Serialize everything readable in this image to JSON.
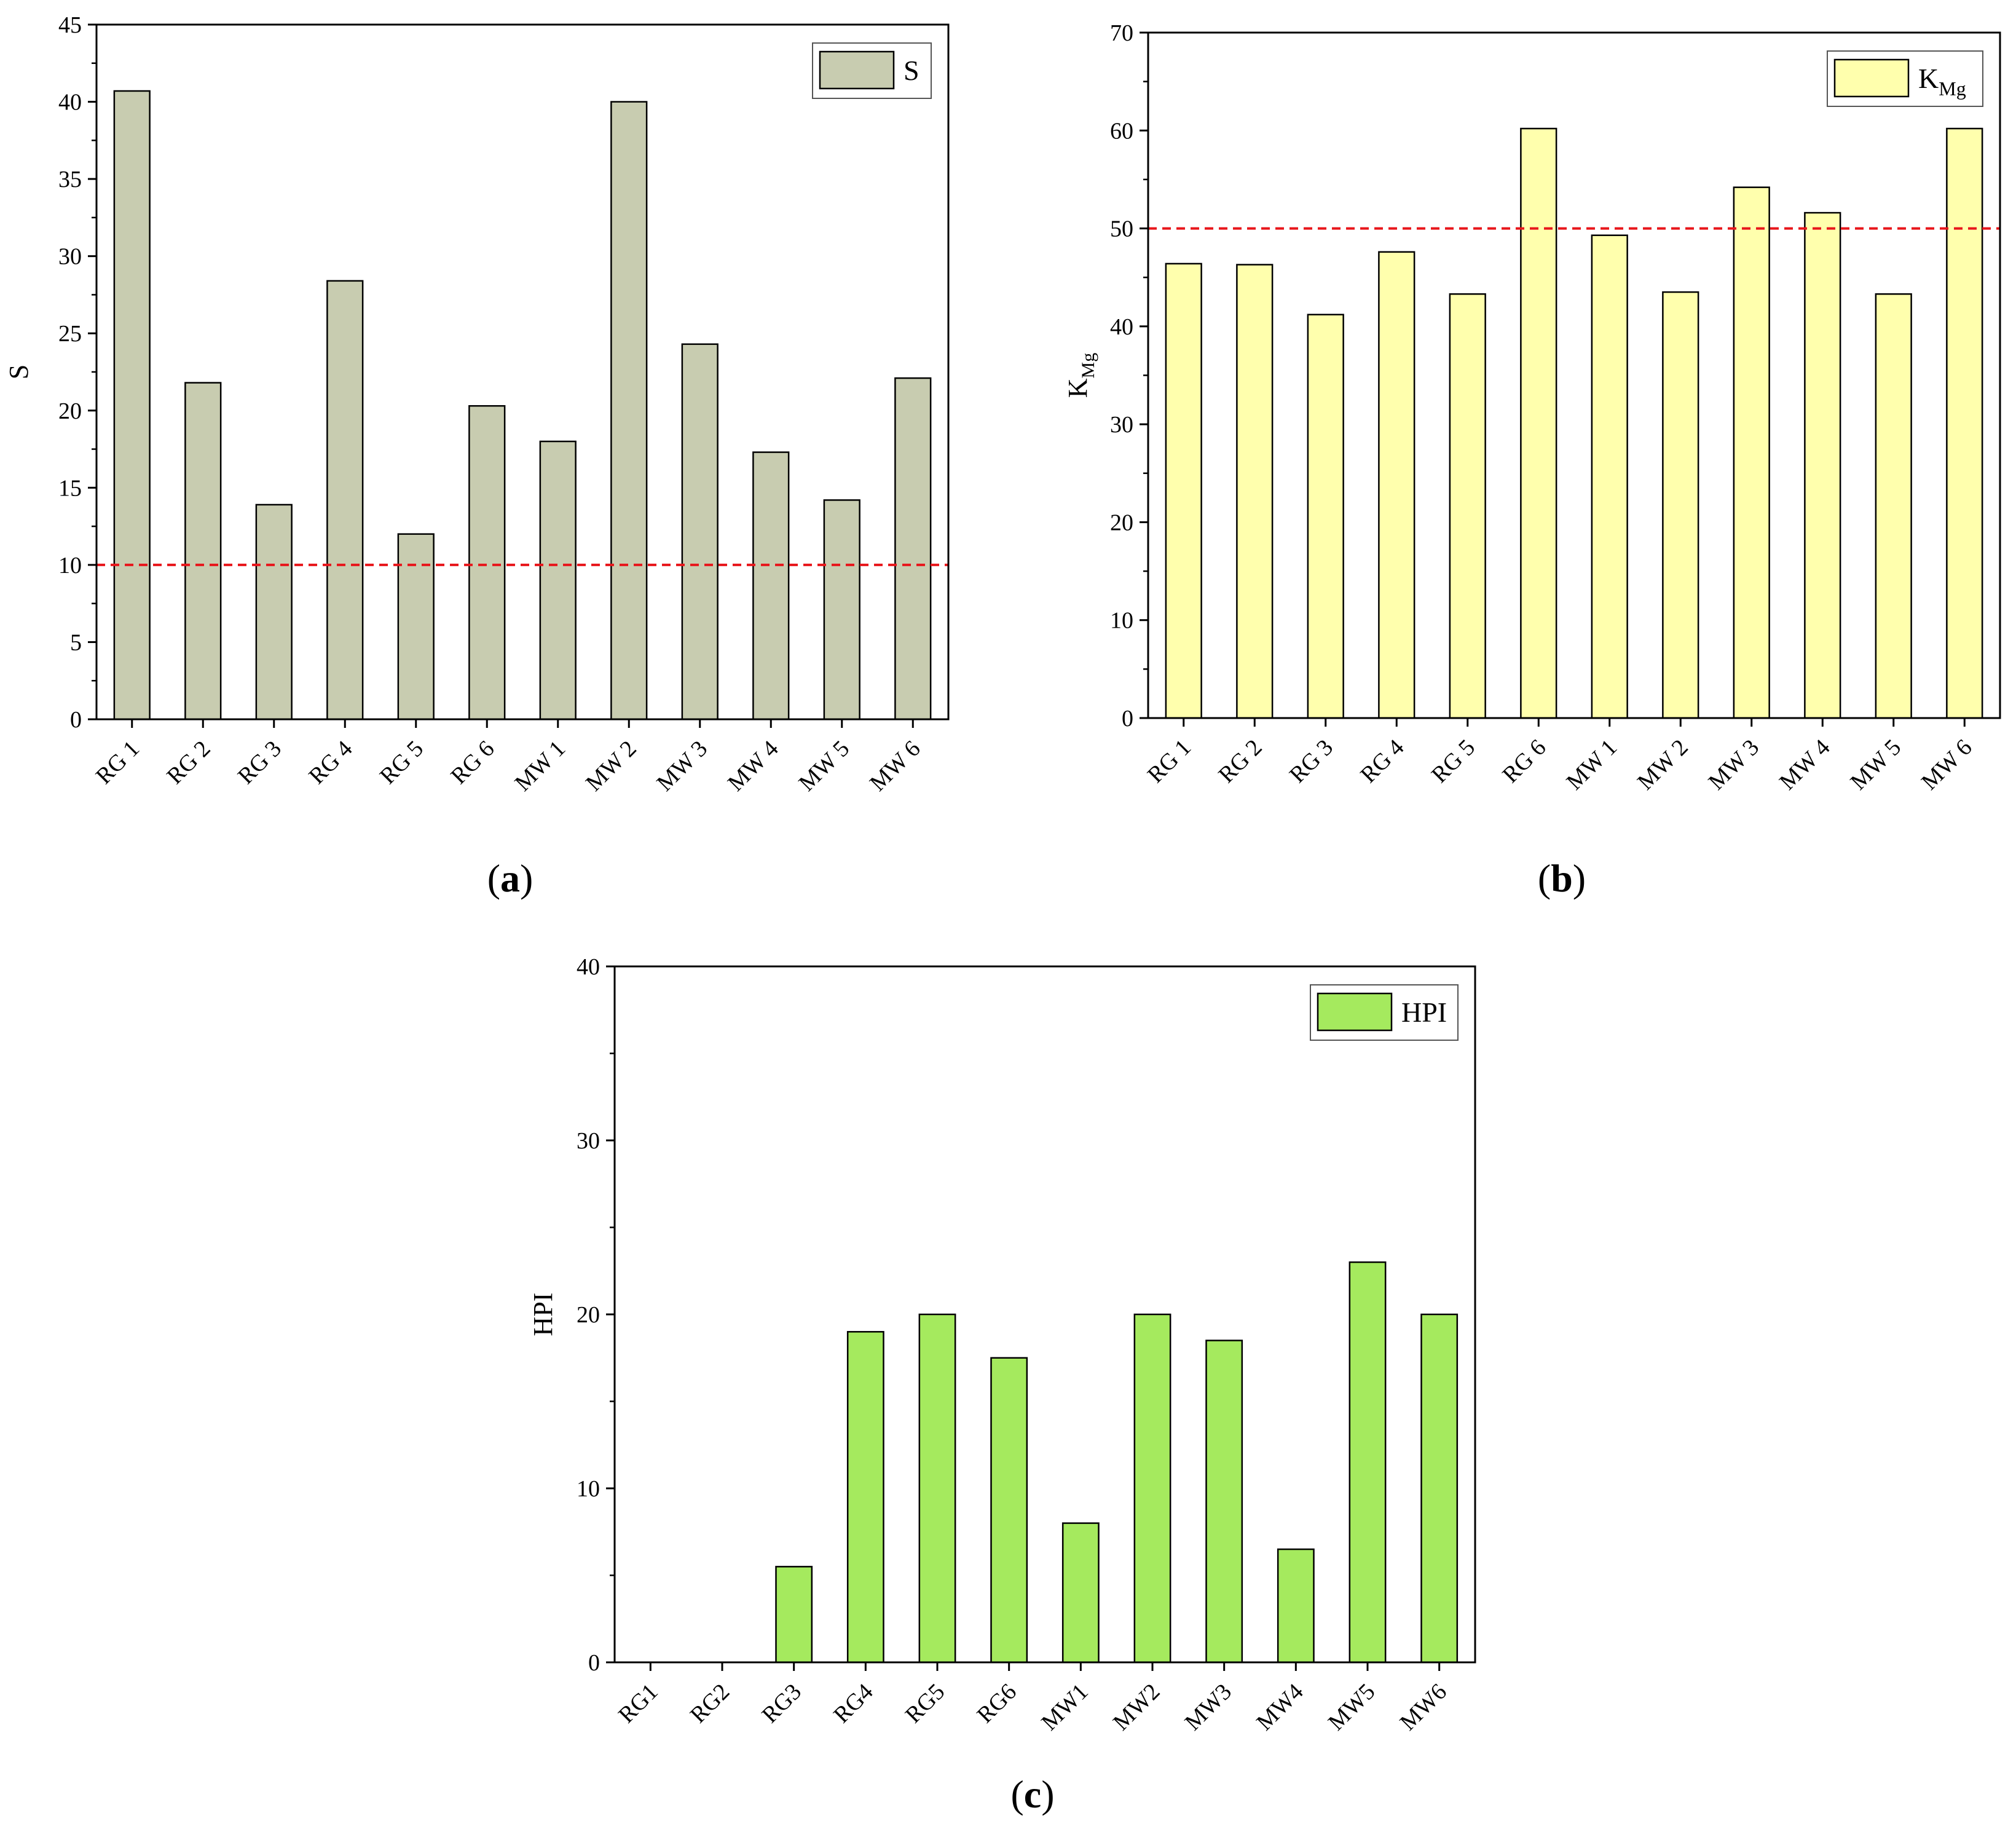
{
  "chart_data": [
    {
      "id": "a",
      "type": "bar",
      "caption_letter": "a",
      "ylabel": "S",
      "ylabel_sub": "",
      "legend_label": "S",
      "legend_sub": "",
      "legend_position": "top-right",
      "categories": [
        "RG 1",
        "RG 2",
        "RG 3",
        "RG 4",
        "RG 5",
        "RG 6",
        "MW 1",
        "MW 2",
        "MW 3",
        "MW 4",
        "MW 5",
        "MW 6"
      ],
      "values": [
        40.7,
        21.8,
        13.9,
        28.4,
        12.0,
        20.3,
        18.0,
        40.0,
        24.3,
        17.3,
        14.2,
        22.1
      ],
      "ylim": [
        0,
        45
      ],
      "yticks": [
        0,
        5,
        10,
        15,
        20,
        25,
        30,
        35,
        40,
        45
      ],
      "threshold": 10,
      "bar_color": "#c8ccb0",
      "threshold_color": "#e8161b"
    },
    {
      "id": "b",
      "type": "bar",
      "caption_letter": "b",
      "ylabel": "K",
      "ylabel_sub": "Mg",
      "legend_label": "K",
      "legend_sub": "Mg",
      "legend_position": "top-right",
      "categories": [
        "RG 1",
        "RG 2",
        "RG 3",
        "RG 4",
        "RG 5",
        "RG 6",
        "MW 1",
        "MW 2",
        "MW 3",
        "MW 4",
        "MW 5",
        "MW 6"
      ],
      "values": [
        46.4,
        46.3,
        41.2,
        47.6,
        43.3,
        60.2,
        49.3,
        43.5,
        54.2,
        51.6,
        43.3,
        60.2
      ],
      "ylim": [
        0,
        70
      ],
      "yticks": [
        0,
        10,
        20,
        30,
        40,
        50,
        60,
        70
      ],
      "threshold": 50,
      "bar_color": "#ffffad",
      "threshold_color": "#e8161b"
    },
    {
      "id": "c",
      "type": "bar",
      "caption_letter": "c",
      "ylabel": "HPI",
      "ylabel_sub": "",
      "legend_label": "HPI",
      "legend_sub": "",
      "legend_position": "top-right",
      "categories": [
        "RG1",
        "RG2",
        "RG3",
        "RG4",
        "RG5",
        "RG6",
        "MW1",
        "MW2",
        "MW3",
        "MW4",
        "MW5",
        "MW6"
      ],
      "values": [
        0,
        0,
        5.5,
        19.0,
        20.0,
        17.5,
        8.0,
        20.0,
        18.5,
        6.5,
        23.0,
        20.0
      ],
      "ylim": [
        0,
        40
      ],
      "yticks": [
        0,
        10,
        20,
        30,
        40
      ],
      "threshold": null,
      "bar_color": "#a5ea5e",
      "threshold_color": ""
    }
  ]
}
